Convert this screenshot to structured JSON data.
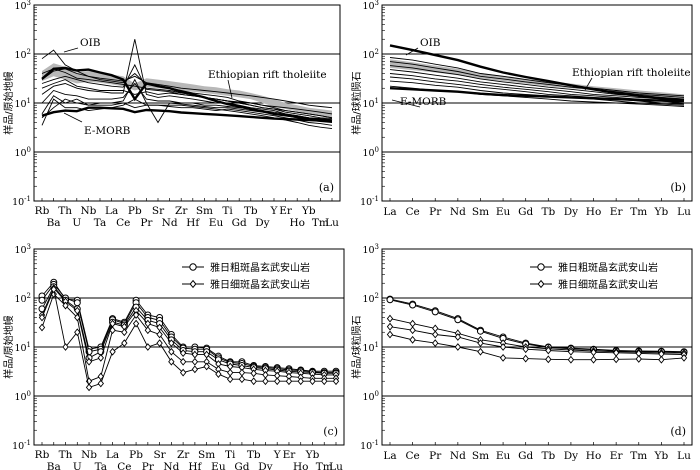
{
  "chart_data": [
    {
      "panel": "(a)",
      "type": "line",
      "ylabel": "样品/原始地幔",
      "yscale": "log",
      "ylim": [
        0.1,
        1000
      ],
      "ytick_labels": [
        "10^-1",
        "10^0",
        "10^1",
        "10^2",
        "10^3"
      ],
      "categories": [
        "Rb",
        "Ba",
        "Th",
        "U",
        "Nb",
        "Ta",
        "La",
        "Ce",
        "Pb",
        "Pr",
        "Sr",
        "Nd",
        "Zr",
        "Hf",
        "Sm",
        "Eu",
        "Ti",
        "Gd",
        "Tb",
        "Dy",
        "Y",
        "Er",
        "Ho",
        "Yb",
        "Tm",
        "Lu"
      ],
      "x_label_rows": {
        "top": [
          "Rb",
          "Th",
          "Nb",
          "La",
          "Pb",
          "Sr",
          "Zr",
          "Sm",
          "Ti",
          "Tb",
          "Y",
          "Er",
          "Yb"
        ],
        "bottom": [
          "Ba",
          "U",
          "Ta",
          "Ce",
          "Pr",
          "Nd",
          "Hf",
          "Eu",
          "Gd",
          "Dy",
          "Ho",
          "Tm",
          "Lu"
        ]
      },
      "annotations": [
        "OIB",
        "Ethiopian rift tholeiite",
        "E-MORB"
      ],
      "series": [
        {
          "values": [
            40,
            50,
            42,
            32,
            30,
            28,
            26,
            24,
            22,
            20,
            19,
            18,
            16,
            15,
            13,
            12,
            11,
            10,
            9,
            8,
            7.5,
            6.5,
            6,
            5.5,
            5,
            4.8
          ]
        },
        {
          "values": [
            80,
            120,
            60,
            45,
            35,
            30,
            28,
            26,
            40,
            24,
            23,
            20,
            18,
            16,
            15,
            14,
            13,
            11,
            10,
            9,
            8,
            7,
            6.5,
            6,
            5.5,
            5
          ]
        },
        {
          "values": [
            25,
            30,
            35,
            30,
            26,
            24,
            22,
            21,
            60,
            19,
            18,
            17,
            15,
            14,
            13,
            12,
            11,
            10,
            9,
            8,
            7.5,
            7,
            6.5,
            6,
            5.5,
            5
          ]
        },
        {
          "values": [
            15,
            22,
            25,
            20,
            18,
            17,
            16,
            16,
            200,
            15,
            13,
            14,
            13,
            12,
            11,
            10,
            10,
            9,
            8,
            7.5,
            7,
            6,
            5.5,
            5,
            4.8,
            4.5
          ]
        },
        {
          "values": [
            10,
            18,
            15,
            14,
            12,
            12,
            12,
            13,
            25,
            12,
            11,
            11,
            10,
            10,
            9,
            9,
            8.5,
            8,
            7.5,
            7,
            6.5,
            6,
            5.5,
            5,
            4.5,
            4.2
          ]
        },
        {
          "values": [
            6,
            14,
            10,
            12,
            9,
            10,
            10,
            11,
            30,
            10,
            4,
            10,
            9.5,
            9,
            8.5,
            8,
            8,
            7.5,
            7,
            6.5,
            6,
            5.5,
            5,
            4.5,
            4.2,
            4
          ]
        },
        {
          "values": [
            3.5,
            12,
            8,
            8,
            7,
            7.5,
            8,
            9,
            12,
            9,
            9,
            8.5,
            8,
            8,
            7.5,
            7,
            7.5,
            7,
            6.5,
            6,
            5.5,
            5,
            4.5,
            4,
            3.8,
            3.5
          ]
        },
        {
          "values": [
            5,
            8,
            12,
            10,
            9,
            9,
            9,
            10,
            8,
            9,
            9,
            9,
            9,
            8.5,
            8,
            7.5,
            7,
            6.5,
            6,
            5.5,
            5,
            4.5,
            4,
            3.5,
            3.2,
            3
          ]
        },
        {
          "values": [
            30,
            45,
            50,
            40,
            35,
            32,
            30,
            28,
            35,
            26,
            24,
            22,
            20,
            19,
            18,
            17,
            16,
            15,
            14,
            13,
            12,
            11,
            10,
            9,
            8.5,
            8
          ]
        },
        {
          "values": [
            20,
            25,
            30,
            22,
            20,
            18,
            18,
            18,
            15,
            17,
            15,
            16,
            15,
            14,
            13,
            12,
            11,
            10.5,
            10,
            9,
            8.5,
            8,
            7.5,
            7,
            6.5,
            6
          ]
        }
      ],
      "reference_lines": [
        {
          "name": "OIB",
          "values": [
            31,
            50,
            52,
            46,
            48,
            42,
            37,
            30,
            12,
            25,
            22,
            20,
            17,
            15,
            13,
            11,
            9.5,
            8.5,
            7.5,
            6.8,
            6,
            5.6,
            5.2,
            4.8,
            4.6,
            4.4
          ]
        },
        {
          "name": "E-MORB",
          "values": [
            5.5,
            6.5,
            7,
            6.8,
            8,
            8,
            7.8,
            7.6,
            6.5,
            7.2,
            7,
            6.8,
            6.4,
            6.2,
            6,
            5.8,
            5.6,
            5.4,
            5.2,
            5,
            4.8,
            4.7,
            4.6,
            4.5,
            4.4,
            4.3
          ]
        },
        {
          "name": "Ethiopian rift tholeiite",
          "lower": [
            28,
            35,
            30,
            25,
            27,
            26,
            24,
            22,
            18,
            21,
            20,
            19,
            18,
            17,
            16,
            15,
            14,
            13,
            12,
            10,
            8.5,
            7.5,
            6.8,
            6,
            5.5,
            5
          ],
          "upper": [
            45,
            65,
            55,
            42,
            45,
            42,
            38,
            35,
            25,
            32,
            30,
            28,
            26,
            24,
            22,
            21,
            19,
            18,
            16,
            14,
            12,
            10,
            9,
            8,
            7.5,
            7
          ]
        }
      ]
    },
    {
      "panel": "(b)",
      "type": "line",
      "ylabel": "样品/球粒陨石",
      "yscale": "log",
      "ylim": [
        0.1,
        1000
      ],
      "ytick_labels": [
        "10^-1",
        "10^0",
        "10^1",
        "10^2",
        "10^3"
      ],
      "categories": [
        "La",
        "Ce",
        "Pr",
        "Nd",
        "Sm",
        "Eu",
        "Gd",
        "Tb",
        "Dy",
        "Ho",
        "Er",
        "Tm",
        "Yb",
        "Lu"
      ],
      "x_label_rows": {
        "top": [
          "La",
          "Ce",
          "Pr",
          "Nd",
          "Sm",
          "Eu",
          "Gd",
          "Tb",
          "Dy",
          "Ho",
          "Er",
          "Tm",
          "Yb",
          "Lu"
        ],
        "bottom": []
      },
      "annotations": [
        "OIB",
        "Ethiopian rift tholeiite",
        "E-MORB"
      ],
      "series": [
        {
          "values": [
            85,
            75,
            62,
            52,
            40,
            35,
            30,
            26,
            23,
            20,
            18,
            16,
            15,
            14
          ]
        },
        {
          "values": [
            70,
            62,
            52,
            44,
            35,
            31,
            27,
            24,
            21,
            19,
            17,
            15,
            14,
            13
          ]
        },
        {
          "values": [
            58,
            52,
            44,
            38,
            31,
            27,
            24,
            21,
            19,
            17,
            15,
            14,
            13,
            12
          ]
        },
        {
          "values": [
            48,
            43,
            37,
            32,
            27,
            24,
            21,
            19,
            17,
            15,
            14,
            13,
            12,
            11
          ]
        },
        {
          "values": [
            40,
            36,
            31,
            28,
            24,
            21,
            19,
            17,
            15,
            14,
            13,
            12,
            11,
            10
          ]
        },
        {
          "values": [
            34,
            31,
            27,
            24,
            21,
            19,
            17,
            15,
            14,
            13,
            12,
            11,
            10,
            9.5
          ]
        },
        {
          "values": [
            28,
            26,
            23,
            21,
            18,
            16,
            15,
            14,
            13,
            12,
            11,
            10,
            9.5,
            9
          ]
        },
        {
          "values": [
            22,
            20,
            18,
            17,
            15,
            14,
            13,
            12,
            11,
            10.5,
            10,
            9.5,
            9,
            8.5
          ]
        }
      ],
      "reference_lines": [
        {
          "name": "OIB",
          "values": [
            150,
            120,
            95,
            75,
            55,
            42,
            34,
            28,
            23,
            19,
            16,
            14,
            12.5,
            11.5
          ]
        },
        {
          "name": "E-MORB",
          "values": [
            20,
            19,
            18,
            17,
            15.5,
            14.5,
            14,
            13.5,
            13,
            12.5,
            12,
            11.5,
            11.2,
            11
          ]
        },
        {
          "name": "Ethiopian rift tholeiite",
          "lower": [
            52,
            47,
            42,
            37,
            31,
            28,
            25,
            22,
            20,
            18,
            16,
            14,
            13,
            12
          ],
          "upper": [
            78,
            68,
            58,
            50,
            41,
            36,
            31,
            28,
            25,
            22,
            20,
            18,
            16.5,
            15
          ]
        }
      ]
    },
    {
      "panel": "(c)",
      "type": "line",
      "ylabel": "样品/原始地幔",
      "yscale": "log",
      "ylim": [
        0.1,
        1000
      ],
      "ytick_labels": [
        "10^-1",
        "10^0",
        "10^1",
        "10^2",
        "10^3"
      ],
      "categories": [
        "Rb",
        "Ba",
        "Th",
        "U",
        "Nb",
        "Ta",
        "La",
        "Ce",
        "Pb",
        "Pr",
        "Sr",
        "Nd",
        "Zr",
        "Hf",
        "Sm",
        "Eu",
        "Ti",
        "Gd",
        "Tb",
        "Dy",
        "Y",
        "Er",
        "Ho",
        "Yb",
        "Tm",
        "Lu"
      ],
      "x_label_rows": {
        "top": [
          "Rb",
          "Th",
          "Nb",
          "La",
          "Pb",
          "Sr",
          "Zr",
          "Sm",
          "Ti",
          "Tb",
          "Y",
          "Er",
          "Yb"
        ],
        "bottom": [
          "Ba",
          "U",
          "Ta",
          "Ce",
          "Pr",
          "Nd",
          "Hf",
          "Eu",
          "Gd",
          "Dy",
          "Ho",
          "Tm",
          "Lu"
        ]
      },
      "legend": [
        "雅日粗斑晶玄武安山岩",
        "雅日细斑晶玄武安山岩"
      ],
      "series": [
        {
          "name": "雅日粗斑晶玄武安山岩",
          "values": [
            110,
            210,
            95,
            90,
            9,
            10,
            38,
            32,
            90,
            45,
            40,
            18,
            10,
            10,
            9.5,
            6.5,
            5,
            5,
            4.2,
            4,
            3.8,
            3.6,
            3.4,
            3.2,
            3.2,
            3.2
          ]
        },
        {
          "name": "雅日粗斑晶玄武安山岩",
          "values": [
            90,
            190,
            100,
            80,
            8,
            9,
            36,
            30,
            80,
            40,
            35,
            16,
            9.5,
            9,
            9,
            6,
            4.8,
            4.6,
            4,
            3.8,
            3.6,
            3.4,
            3.3,
            3.1,
            3,
            3
          ]
        },
        {
          "name": "雅日粗斑晶玄武安山岩",
          "values": [
            60,
            170,
            90,
            60,
            6,
            8,
            32,
            28,
            65,
            35,
            30,
            14,
            8.5,
            8,
            8,
            5.5,
            4.5,
            4.2,
            3.8,
            3.6,
            3.4,
            3.2,
            3.1,
            3,
            2.9,
            2.9
          ]
        },
        {
          "name": "雅日细斑晶玄武安山岩",
          "values": [
            45,
            160,
            85,
            55,
            5,
            6,
            30,
            26,
            55,
            30,
            25,
            12,
            7.5,
            7,
            7,
            4.5,
            4,
            3.8,
            3.5,
            3.3,
            3.2,
            3,
            2.9,
            2.8,
            2.7,
            2.7
          ]
        },
        {
          "name": "雅日细斑晶玄武安山岩",
          "values": [
            25,
            120,
            70,
            40,
            2,
            2.5,
            22,
            20,
            45,
            22,
            18,
            8,
            5,
            5,
            5,
            3.5,
            3,
            3,
            2.9,
            2.7,
            2.6,
            2.5,
            2.4,
            2.3,
            2.3,
            2.3
          ]
        },
        {
          "name": "雅日细斑晶玄武安山岩",
          "values": [
            40,
            150,
            10,
            20,
            1.5,
            1.8,
            8,
            12,
            30,
            10,
            12,
            5,
            3,
            3.5,
            4,
            2.8,
            2.2,
            2.2,
            2,
            2,
            2,
            2,
            2,
            2,
            2,
            2
          ]
        }
      ]
    },
    {
      "panel": "(d)",
      "type": "line",
      "ylabel": "样品/球粒陨石",
      "yscale": "log",
      "ylim": [
        0.1,
        1000
      ],
      "ytick_labels": [
        "10^-1",
        "10^0",
        "10^1",
        "10^2",
        "10^3"
      ],
      "categories": [
        "La",
        "Ce",
        "Pr",
        "Nd",
        "Sm",
        "Eu",
        "Gd",
        "Tb",
        "Dy",
        "Ho",
        "Er",
        "Tm",
        "Yb",
        "Lu"
      ],
      "x_label_rows": {
        "top": [
          "La",
          "Ce",
          "Pr",
          "Nd",
          "Sm",
          "Eu",
          "Gd",
          "Tb",
          "Dy",
          "Ho",
          "Er",
          "Tm",
          "Yb",
          "Lu"
        ],
        "bottom": []
      },
      "legend": [
        "雅日粗斑晶玄武安山岩",
        "雅日细斑晶玄武安山岩"
      ],
      "series": [
        {
          "name": "雅日粗斑晶玄武安山岩",
          "values": [
            95,
            75,
            55,
            38,
            22,
            16,
            12,
            10,
            9.5,
            9,
            8.5,
            8.3,
            8.2,
            8
          ]
        },
        {
          "name": "雅日粗斑晶玄武安山岩",
          "values": [
            92,
            72,
            52,
            36,
            21,
            15,
            11.5,
            9.8,
            9.2,
            8.8,
            8.3,
            8.1,
            8,
            7.8
          ]
        },
        {
          "name": "雅日细斑晶玄武安山岩",
          "values": [
            38,
            30,
            24,
            19,
            14,
            12,
            10,
            9.2,
            8.7,
            8.3,
            8,
            7.8,
            7.6,
            7.5
          ]
        },
        {
          "name": "雅日细斑晶玄武安山岩",
          "values": [
            26,
            22,
            18,
            16,
            12,
            10,
            9,
            8.5,
            8,
            7.8,
            7.6,
            7.4,
            7.2,
            7
          ]
        },
        {
          "name": "雅日细斑晶玄武安山岩",
          "values": [
            18,
            14,
            12,
            10,
            8,
            6,
            5.8,
            5.6,
            5.5,
            5.5,
            5.6,
            5.7,
            5.5,
            6
          ]
        }
      ]
    }
  ]
}
